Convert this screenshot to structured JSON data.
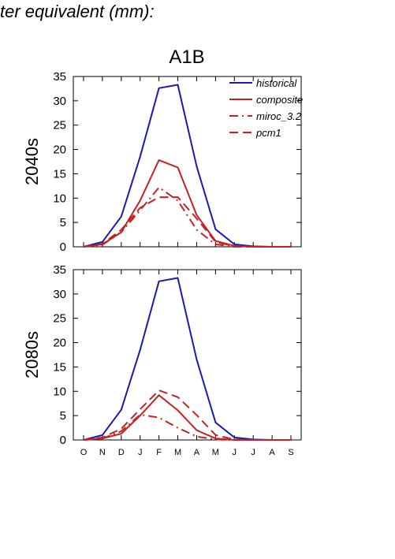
{
  "page_title": "ter equivalent (mm):",
  "scenario": "A1B",
  "colors": {
    "historical": "#1a1ab3",
    "red": "#c42222"
  },
  "chart_data": {
    "type": "line",
    "x": [
      "O",
      "N",
      "D",
      "J",
      "F",
      "M",
      "A",
      "M",
      "J",
      "J",
      "A",
      "S"
    ],
    "ylim": [
      0,
      35
    ],
    "yticks": [
      0,
      5,
      10,
      15,
      20,
      25,
      30,
      35
    ],
    "legend": [
      "historical",
      "composite",
      "miroc_3.2",
      "pcm1"
    ],
    "legend_position": "top-right",
    "panels": [
      {
        "label": "2040s",
        "series": [
          {
            "name": "historical",
            "style": "solid",
            "color": "#1a1ab3",
            "values": [
              0,
              1.0,
              6.2,
              18.5,
              32.6,
              33.3,
              16.5,
              3.6,
              0.5,
              0.1,
              0,
              0
            ]
          },
          {
            "name": "composite",
            "style": "solid",
            "color": "#c42222",
            "values": [
              0,
              0.5,
              3.0,
              9.5,
              17.8,
              16.3,
              6.5,
              1.2,
              0.2,
              0,
              0,
              0
            ]
          },
          {
            "name": "miroc_3.2",
            "style": "dashdot",
            "color": "#c42222",
            "values": [
              0,
              0.4,
              3.0,
              7.5,
              12.2,
              9.5,
              3.5,
              0.5,
              0,
              0,
              0,
              0
            ]
          },
          {
            "name": "pcm1",
            "style": "dash",
            "color": "#c42222",
            "values": [
              0,
              0.6,
              3.5,
              8.0,
              10.2,
              10.2,
              5.8,
              1.0,
              0.1,
              0,
              0,
              0
            ]
          }
        ]
      },
      {
        "label": "2080s",
        "series": [
          {
            "name": "historical",
            "style": "solid",
            "color": "#1a1ab3",
            "values": [
              0,
              1.0,
              6.2,
              18.5,
              32.6,
              33.3,
              16.5,
              3.6,
              0.5,
              0.1,
              0,
              0
            ]
          },
          {
            "name": "composite",
            "style": "solid",
            "color": "#c42222",
            "values": [
              0,
              0.3,
              1.3,
              5.0,
              9.2,
              6.1,
              2.0,
              0.3,
              0,
              0,
              0,
              0
            ]
          },
          {
            "name": "miroc_3.2",
            "style": "dashdot",
            "color": "#c42222",
            "values": [
              0,
              0.3,
              1.8,
              5.2,
              4.6,
              2.5,
              0.7,
              0.1,
              0,
              0,
              0,
              0
            ]
          },
          {
            "name": "pcm1",
            "style": "dash",
            "color": "#c42222",
            "values": [
              0,
              0.5,
              2.3,
              6.3,
              10.2,
              8.8,
              5.1,
              1.0,
              0.1,
              0,
              0,
              0
            ]
          }
        ]
      }
    ]
  }
}
